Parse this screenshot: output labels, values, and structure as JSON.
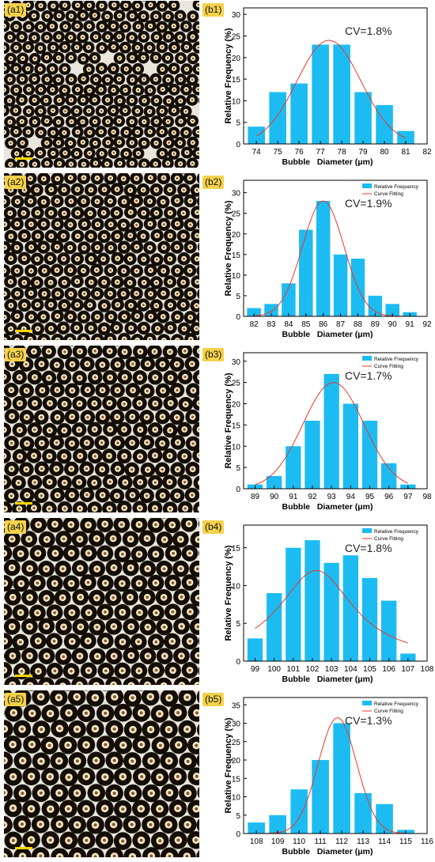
{
  "panels": [
    {
      "micro_label": "(a1)",
      "chart_label": "(b1)"
    },
    {
      "micro_label": "(a2)",
      "chart_label": "(b2)"
    },
    {
      "micro_label": "(a3)",
      "chart_label": "(b3)"
    },
    {
      "micro_label": "(a4)",
      "chart_label": "(b4)"
    },
    {
      "micro_label": "(a5)",
      "chart_label": "(b5)"
    }
  ],
  "colors": {
    "bar": "#1cbcf2",
    "fit": "#e8392a",
    "label_bg": "#f4d24b"
  },
  "chart_data": [
    {
      "type": "bar",
      "xlabel": "Bubble   Diameter (μm)",
      "ylabel": "Relative Frequency (%)",
      "annotation": "CV=1.8%",
      "legend": [
        "Relative Frequency",
        "Curve Fitting"
      ],
      "legend_visible": false,
      "x_ticks": [
        74,
        75,
        76,
        77,
        78,
        79,
        80,
        81,
        82
      ],
      "xlim": [
        73.4,
        82
      ],
      "y_ticks": [
        0,
        5,
        10,
        15,
        20,
        25,
        30
      ],
      "ylim": [
        0,
        31.5
      ],
      "categories": [
        74,
        75,
        76,
        77,
        78,
        79,
        80,
        81
      ],
      "values": [
        4,
        12,
        14,
        23,
        23,
        12,
        9,
        3
      ],
      "fit": {
        "mu": 77.4,
        "sigma": 1.5,
        "peak": 24
      }
    },
    {
      "type": "bar",
      "xlabel": "Bubble   Diameter (μm)",
      "ylabel": "Relative Frequency (%)",
      "annotation": "CV=1.9%",
      "legend": [
        "Relative Frequency",
        "Curve Fitting"
      ],
      "legend_visible": true,
      "x_ticks": [
        82,
        83,
        84,
        85,
        86,
        87,
        88,
        89,
        90,
        91,
        92
      ],
      "xlim": [
        81.4,
        92
      ],
      "y_ticks": [
        0,
        5,
        10,
        15,
        20,
        25,
        30
      ],
      "ylim": [
        0,
        33
      ],
      "categories": [
        82,
        83,
        84,
        85,
        86,
        87,
        88,
        89,
        90,
        91
      ],
      "values": [
        2,
        3,
        8,
        21,
        28,
        15,
        14,
        5,
        3,
        1
      ],
      "fit": {
        "mu": 86.0,
        "sigma": 1.2,
        "peak": 28
      }
    },
    {
      "type": "bar",
      "xlabel": "Bubble   Diameter (μm)",
      "ylabel": "Relative Frequency (%)",
      "annotation": "CV=1.7%",
      "legend": [
        "Relative Frequency",
        "Curve Fitting"
      ],
      "legend_visible": true,
      "x_ticks": [
        89,
        90,
        91,
        92,
        93,
        94,
        95,
        96,
        97,
        98
      ],
      "xlim": [
        88.4,
        98
      ],
      "y_ticks": [
        0,
        5,
        10,
        15,
        20,
        25,
        30
      ],
      "ylim": [
        0,
        32
      ],
      "categories": [
        89,
        90,
        91,
        92,
        93,
        94,
        95,
        96,
        97
      ],
      "values": [
        1,
        3,
        10,
        16,
        27,
        20,
        16,
        6,
        1
      ],
      "fit": {
        "mu": 93.1,
        "sigma": 1.6,
        "peak": 25
      }
    },
    {
      "type": "bar",
      "xlabel": "Bubble   Diameter (μm)",
      "ylabel": "Relative Frequency (%)",
      "annotation": "CV=1.8%",
      "legend": [
        "Relative Frequency",
        "Curve Fitting"
      ],
      "legend_visible": true,
      "x_ticks": [
        99,
        100,
        101,
        102,
        103,
        104,
        105,
        106,
        107,
        108
      ],
      "xlim": [
        98.4,
        108
      ],
      "y_ticks": [
        0,
        5,
        10,
        15
      ],
      "ylim": [
        0,
        18
      ],
      "categories": [
        99,
        100,
        101,
        102,
        103,
        104,
        105,
        106,
        107
      ],
      "values": [
        3,
        9,
        15,
        16,
        13,
        14,
        11,
        8,
        1
      ],
      "fit": {
        "type": "lorentz",
        "mu": 102.2,
        "gamma": 2.4,
        "peak": 12
      }
    },
    {
      "type": "bar",
      "xlabel": "Bubble   Diameter (μm)",
      "ylabel": "Relative Frequency (%)",
      "annotation": "CV=1.3%",
      "legend": [
        "Relative Frequency",
        "Curve Fitting"
      ],
      "legend_visible": true,
      "x_ticks": [
        108,
        109,
        110,
        111,
        112,
        113,
        114,
        115,
        116
      ],
      "xlim": [
        107.4,
        116
      ],
      "y_ticks": [
        0,
        5,
        10,
        15,
        20,
        25,
        30,
        35
      ],
      "ylim": [
        0,
        37
      ],
      "categories": [
        108,
        109,
        110,
        111,
        112,
        113,
        114,
        115
      ],
      "values": [
        3,
        5,
        12,
        20,
        30,
        11,
        8,
        1
      ],
      "fit": {
        "mu": 111.8,
        "sigma": 0.9,
        "peak": 31.5
      }
    }
  ]
}
